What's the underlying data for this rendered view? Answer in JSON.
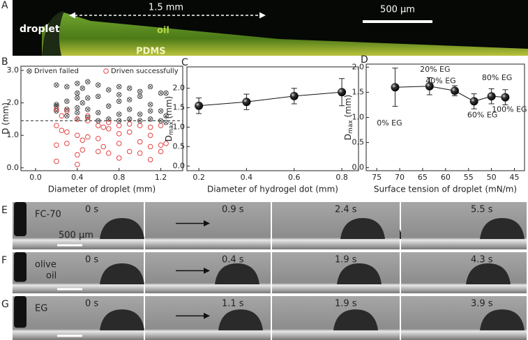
{
  "figure_a": {
    "panel": "A",
    "droplet": "droplet",
    "oil": "oil",
    "pdms": "PDMS",
    "distance": "1.5 mm",
    "scale": "500 µm"
  },
  "rows": [
    {
      "panel": "E",
      "liquid": [
        "FC-70"
      ],
      "scale": "500 µm",
      "times": [
        "0 s",
        "0.9 s",
        "2.4 s",
        "5.5 s"
      ]
    },
    {
      "panel": "F",
      "liquid": [
        "olive",
        "oil"
      ],
      "times": [
        "0 s",
        "0.4 s",
        "1.9 s",
        "4.3 s"
      ]
    },
    {
      "panel": "G",
      "liquid": [
        "EG"
      ],
      "times": [
        "0 s",
        "1.1 s",
        "1.9 s",
        "3.9 s"
      ]
    }
  ],
  "chart_data": [
    {
      "type": "scatter",
      "panel": "B",
      "xlabel": "Diameter of droplet (mm)",
      "ylabel": "D (mm)",
      "xlim": [
        -0.14,
        1.41
      ],
      "ylim": [
        -0.09,
        3.13
      ],
      "xticks": [
        {
          "value": 0,
          "label": "0.0"
        },
        {
          "value": 0.4,
          "label": "0.4"
        },
        {
          "value": 0.8,
          "label": "0.8"
        },
        {
          "value": 1.2,
          "label": "1.2"
        }
      ],
      "yticks": [
        {
          "value": 0,
          "label": "0.0"
        },
        {
          "value": 1,
          "label": "1.0"
        },
        {
          "value": 2,
          "label": "2.0"
        },
        {
          "value": 3,
          "label": "3.0"
        }
      ],
      "hline": 1.45,
      "legend": "top",
      "series": [
        {
          "name": "Driven failed",
          "color": "#444444",
          "marker": "crossed-circle",
          "x": [
            0.2,
            0.2,
            0.2,
            0.2,
            0.3,
            0.3,
            0.3,
            0.3,
            0.4,
            0.4,
            0.4,
            0.4,
            0.4,
            0.4,
            0.45,
            0.45,
            0.5,
            0.5,
            0.5,
            0.5,
            0.6,
            0.6,
            0.6,
            0.6,
            0.7,
            0.7,
            0.7,
            0.8,
            0.8,
            0.8,
            0.8,
            0.8,
            0.9,
            0.9,
            0.9,
            0.9,
            1.0,
            1.0,
            1.0,
            1.0,
            1.1,
            1.1,
            1.1,
            1.1,
            1.2,
            1.2,
            1.2,
            1.25,
            1.25,
            1.25
          ],
          "y": [
            2.55,
            1.95,
            1.9,
            1.75,
            2.5,
            2.05,
            1.8,
            1.6,
            2.6,
            2.3,
            2.15,
            1.85,
            1.7,
            1.5,
            2.45,
            2.0,
            2.65,
            2.15,
            1.8,
            1.55,
            2.55,
            2.2,
            1.7,
            1.45,
            2.4,
            1.9,
            1.5,
            2.5,
            2.25,
            2.05,
            1.65,
            1.45,
            2.45,
            2.1,
            1.8,
            1.5,
            2.35,
            2.2,
            1.65,
            1.45,
            2.5,
            1.95,
            1.75,
            1.5,
            2.3,
            1.75,
            1.45,
            2.3,
            1.6,
            1.4
          ]
        },
        {
          "name": "Driven successfully",
          "color": "#e03030",
          "marker": "circle",
          "x": [
            0.2,
            0.2,
            0.2,
            0.2,
            0.25,
            0.25,
            0.3,
            0.3,
            0.3,
            0.4,
            0.4,
            0.4,
            0.4,
            0.45,
            0.45,
            0.5,
            0.5,
            0.5,
            0.6,
            0.6,
            0.6,
            0.65,
            0.65,
            0.7,
            0.7,
            0.7,
            0.8,
            0.8,
            0.8,
            0.8,
            0.9,
            0.9,
            0.9,
            1.0,
            1.0,
            1.0,
            1.1,
            1.1,
            1.1,
            1.1,
            1.2,
            1.2,
            1.2,
            1.25
          ],
          "y": [
            1.8,
            1.3,
            0.7,
            0.2,
            1.6,
            1.15,
            1.75,
            1.1,
            0.75,
            1.5,
            1.0,
            0.4,
            0.1,
            0.85,
            0.55,
            1.6,
            1.45,
            0.95,
            1.3,
            0.9,
            0.5,
            1.25,
            0.65,
            1.4,
            1.2,
            0.45,
            1.3,
            1.05,
            0.75,
            0.3,
            1.35,
            1.1,
            0.5,
            1.3,
            0.8,
            0.45,
            1.25,
            1.0,
            0.65,
            0.25,
            1.3,
            0.7,
            0.5,
            0.75
          ]
        }
      ]
    },
    {
      "type": "line",
      "panel": "C",
      "xlabel": "Diameter of hydrogel dot (mm)",
      "ylabel": "D",
      "ylabel_sub": "max",
      "ylabel_unit": " (mm)",
      "xlim": [
        0.15,
        0.87
      ],
      "ylim": [
        -0.12,
        2.55
      ],
      "xticks": [
        0.2,
        0.4,
        0.6,
        0.8
      ],
      "yticks": [
        {
          "value": 0,
          "label": "0.0"
        },
        {
          "value": 0.5,
          "label": "0.5"
        },
        {
          "value": 1,
          "label": "1.0"
        },
        {
          "value": 1.5,
          "label": "1.5"
        },
        {
          "value": 2,
          "label": "2.0"
        }
      ],
      "x": [
        0.2,
        0.4,
        0.6,
        0.8
      ],
      "series": [
        {
          "color": "#111111",
          "values": [
            1.55,
            1.65,
            1.8,
            1.9
          ],
          "errors": [
            0.2,
            0.2,
            0.2,
            0.35
          ]
        }
      ]
    },
    {
      "type": "line",
      "panel": "D",
      "xlabel": "Surface tension of droplet (mN/m)",
      "ylabel": "D",
      "ylabel_sub": "max",
      "ylabel_unit": " (mm)",
      "xlim": [
        77.3,
        42.8
      ],
      "ylim": [
        -0.06,
        2.06
      ],
      "xticks": [
        75,
        70,
        65,
        60,
        55,
        50,
        45
      ],
      "yticks": [
        {
          "value": 0,
          "label": "0.0"
        },
        {
          "value": 0.5,
          "label": "0.5"
        },
        {
          "value": 1,
          "label": "1.0"
        },
        {
          "value": 1.5,
          "label": "1.5"
        },
        {
          "value": 2,
          "label": "2.0"
        }
      ],
      "x": [
        71,
        63.5,
        58,
        53.8,
        50,
        47
      ],
      "series": [
        {
          "color": "#111111",
          "values": [
            1.6,
            1.62,
            1.53,
            1.32,
            1.42,
            1.4
          ],
          "errors": [
            0.38,
            0.17,
            0.1,
            0.15,
            0.15,
            0.15
          ],
          "labels": [
            "0% EG",
            "20% EG",
            "40% EG",
            "60% EG",
            "80% EG",
            "100% EG"
          ]
        }
      ]
    }
  ]
}
